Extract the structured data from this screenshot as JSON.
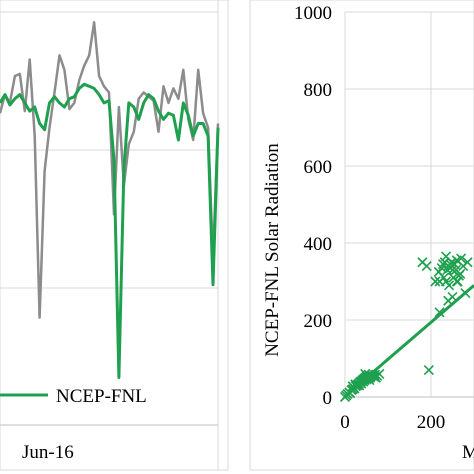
{
  "chart_data": [
    {
      "type": "line",
      "title": "",
      "xlabel": "",
      "ylabel": "",
      "x_tick_labels": [
        "Jun-16"
      ],
      "ylim": [
        0,
        1000
      ],
      "grid": true,
      "legend_position": "bottom",
      "series": [
        {
          "name": "",
          "color": "#8c8c8c",
          "x": [
            0,
            1,
            2,
            3,
            4,
            5,
            6,
            7,
            8,
            9,
            10,
            11,
            12,
            13,
            14,
            15,
            16,
            17,
            18,
            19,
            20,
            21,
            22,
            23,
            24,
            25,
            26,
            27,
            28,
            29,
            30,
            31,
            32,
            33,
            34,
            35,
            36,
            37,
            38,
            39,
            40,
            41,
            42,
            43,
            44
          ],
          "values": [
            755,
            800,
            780,
            845,
            850,
            760,
            885,
            700,
            260,
            615,
            720,
            805,
            895,
            860,
            765,
            780,
            835,
            870,
            895,
            975,
            845,
            820,
            805,
            510,
            770,
            580,
            680,
            710,
            790,
            805,
            795,
            785,
            710,
            820,
            780,
            815,
            790,
            860,
            740,
            690,
            860,
            755,
            720,
            400,
            730
          ]
        },
        {
          "name": "NCEP-FNL",
          "color": "#1fa04f",
          "x": [
            0,
            1,
            2,
            3,
            4,
            5,
            6,
            7,
            8,
            9,
            10,
            11,
            12,
            13,
            14,
            15,
            16,
            17,
            18,
            19,
            20,
            21,
            22,
            23,
            24,
            25,
            26,
            27,
            28,
            29,
            30,
            31,
            32,
            33,
            34,
            35,
            36,
            37,
            38,
            39,
            40,
            41,
            42,
            43,
            44
          ],
          "values": [
            780,
            800,
            775,
            790,
            800,
            780,
            760,
            770,
            730,
            715,
            780,
            795,
            780,
            770,
            790,
            795,
            815,
            825,
            820,
            815,
            800,
            780,
            785,
            640,
            115,
            620,
            780,
            770,
            740,
            780,
            800,
            790,
            760,
            740,
            755,
            750,
            690,
            780,
            750,
            700,
            730,
            730,
            700,
            340,
            720
          ]
        }
      ]
    },
    {
      "type": "scatter",
      "title": "",
      "xlabel": "M",
      "ylabel": "NCEP-FNL Solar Radiation",
      "xlim": [
        -10,
        320
      ],
      "ylim": [
        0,
        1000
      ],
      "x_ticks": [
        0,
        200
      ],
      "y_ticks": [
        0,
        200,
        400,
        600,
        800,
        1000
      ],
      "grid": true,
      "marker": "x",
      "color": "#1fa04f",
      "points": [
        [
          0,
          0
        ],
        [
          3,
          4
        ],
        [
          6,
          8
        ],
        [
          10,
          12
        ],
        [
          12,
          10
        ],
        [
          15,
          18
        ],
        [
          18,
          20
        ],
        [
          20,
          25
        ],
        [
          22,
          22
        ],
        [
          25,
          28
        ],
        [
          28,
          30
        ],
        [
          30,
          32
        ],
        [
          32,
          35
        ],
        [
          35,
          38
        ],
        [
          37,
          40
        ],
        [
          38,
          35
        ],
        [
          40,
          42
        ],
        [
          42,
          45
        ],
        [
          43,
          40
        ],
        [
          45,
          48
        ],
        [
          46,
          44
        ],
        [
          48,
          50
        ],
        [
          50,
          52
        ],
        [
          50,
          46
        ],
        [
          52,
          55
        ],
        [
          53,
          49
        ],
        [
          55,
          58
        ],
        [
          56,
          52
        ],
        [
          58,
          50
        ],
        [
          60,
          54
        ],
        [
          62,
          56
        ],
        [
          65,
          55
        ],
        [
          68,
          52
        ],
        [
          70,
          58
        ],
        [
          72,
          50
        ],
        [
          75,
          55
        ],
        [
          80,
          60
        ],
        [
          18,
          28
        ],
        [
          24,
          33
        ],
        [
          33,
          30
        ],
        [
          47,
          60
        ],
        [
          57,
          44
        ],
        [
          180,
          350
        ],
        [
          190,
          340
        ],
        [
          195,
          70
        ],
        [
          210,
          300
        ],
        [
          218,
          325
        ],
        [
          220,
          300
        ],
        [
          225,
          335
        ],
        [
          228,
          345
        ],
        [
          230,
          310
        ],
        [
          232,
          350
        ],
        [
          235,
          300
        ],
        [
          238,
          330
        ],
        [
          240,
          340
        ],
        [
          242,
          290
        ],
        [
          245,
          335
        ],
        [
          248,
          350
        ],
        [
          250,
          330
        ],
        [
          252,
          310
        ],
        [
          255,
          345
        ],
        [
          258,
          330
        ],
        [
          260,
          355
        ],
        [
          262,
          300
        ],
        [
          265,
          315
        ],
        [
          268,
          320
        ],
        [
          270,
          360
        ],
        [
          275,
          340
        ],
        [
          280,
          270
        ],
        [
          285,
          350
        ],
        [
          250,
          260
        ],
        [
          240,
          250
        ],
        [
          220,
          220
        ],
        [
          260,
          300
        ],
        [
          235,
          365
        ],
        [
          245,
          345
        ]
      ],
      "trendline": {
        "from": [
          0,
          2
        ],
        "to": [
          310,
          290
        ]
      }
    }
  ]
}
